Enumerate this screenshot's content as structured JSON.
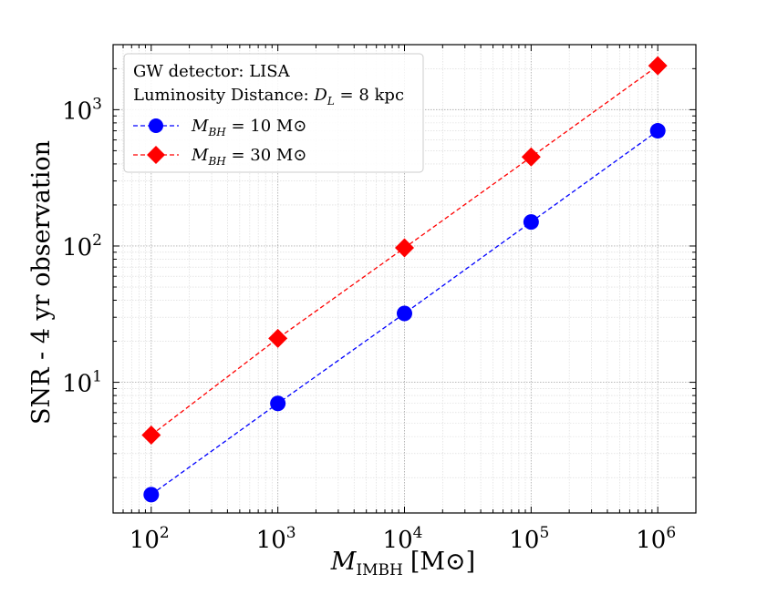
{
  "chart_data": {
    "type": "line",
    "xscale": "log",
    "yscale": "log",
    "xlabel": "M_IMBH [M⊙]",
    "xlabel_parts": {
      "symbol": "M",
      "subscript": "IMBH",
      "unit": "[M⊙]"
    },
    "ylabel": "SNR - 4 yr observation",
    "xlim": [
      50,
      2000000
    ],
    "ylim": [
      1.1,
      3000
    ],
    "x_ticks": [
      {
        "value": 100,
        "base": "10",
        "exp": "2"
      },
      {
        "value": 1000,
        "base": "10",
        "exp": "3"
      },
      {
        "value": 10000,
        "base": "10",
        "exp": "4"
      },
      {
        "value": 100000,
        "base": "10",
        "exp": "5"
      },
      {
        "value": 1000000,
        "base": "10",
        "exp": "6"
      }
    ],
    "y_ticks": [
      {
        "value": 10,
        "base": "10",
        "exp": "1"
      },
      {
        "value": 100,
        "base": "10",
        "exp": "2"
      },
      {
        "value": 1000,
        "base": "10",
        "exp": "3"
      }
    ],
    "grid": true,
    "legend": {
      "position": "top-left",
      "header_lines": [
        "GW detector: LISA",
        "Luminosity Distance: D_L = 8 kpc"
      ],
      "header_parts": {
        "line2_prefix": "Luminosity Distance: ",
        "symbol": "D",
        "subscript": "L",
        "value": " = 8 kpc"
      }
    },
    "series": [
      {
        "name": "M_BH = 10 M⊙",
        "label_parts": {
          "symbol": "M",
          "subscript": "BH",
          "value": " = 10 M⊙"
        },
        "color": "#0000ff",
        "marker": "circle",
        "linestyle": "dashed",
        "x": [
          100,
          1000,
          10000,
          100000,
          1000000
        ],
        "y": [
          1.5,
          7,
          32,
          150,
          700
        ]
      },
      {
        "name": "M_BH = 30 M⊙",
        "label_parts": {
          "symbol": "M",
          "subscript": "BH",
          "value": " = 30 M⊙"
        },
        "color": "#ff0000",
        "marker": "diamond",
        "linestyle": "dashed",
        "x": [
          100,
          1000,
          10000,
          100000,
          1000000
        ],
        "y": [
          4.1,
          21,
          97,
          450,
          2100
        ]
      }
    ]
  }
}
